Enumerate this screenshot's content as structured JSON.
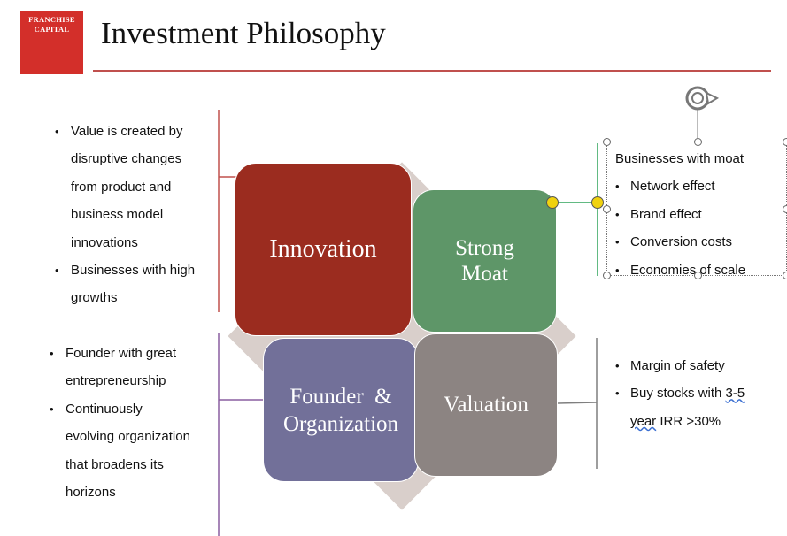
{
  "logo": {
    "line1": "FRANCHISE",
    "line2": "CAPITAL"
  },
  "title": "Investment Philosophy",
  "innovation_bullets": [
    "Value is created by disruptive changes from product and business model innovations",
    "Businesses with high growths"
  ],
  "founder_bullets": [
    "Founder with great entrepreneurship",
    "Continuously evolving organization that broadens its horizons"
  ],
  "tiles": {
    "innovation": "Innovation",
    "moat_line1": "Strong",
    "moat_line2": "Moat",
    "founder_line1": "Founder  &",
    "founder_line2": "Organization",
    "valuation": "Valuation"
  },
  "moat_box": {
    "heading": "Businesses with moat",
    "items": [
      "Network effect",
      "Brand effect",
      "Conversion costs",
      "Economies of scale"
    ]
  },
  "valuation_box": {
    "item1": "Margin of safety",
    "item2_prefix": "Buy stocks with ",
    "item2_link_a": "3-5",
    "item2_link_b": "year",
    "item2_suffix": " IRR >30%"
  },
  "colors": {
    "brand": "#d32f2a",
    "innovation": "#9b2c1f",
    "moat": "#5e9668",
    "founder": "#727099",
    "valuation": "#8c8482",
    "handle_yellow": "#f0d20f"
  },
  "icons": {
    "rotate_handle": "rotate-icon"
  }
}
